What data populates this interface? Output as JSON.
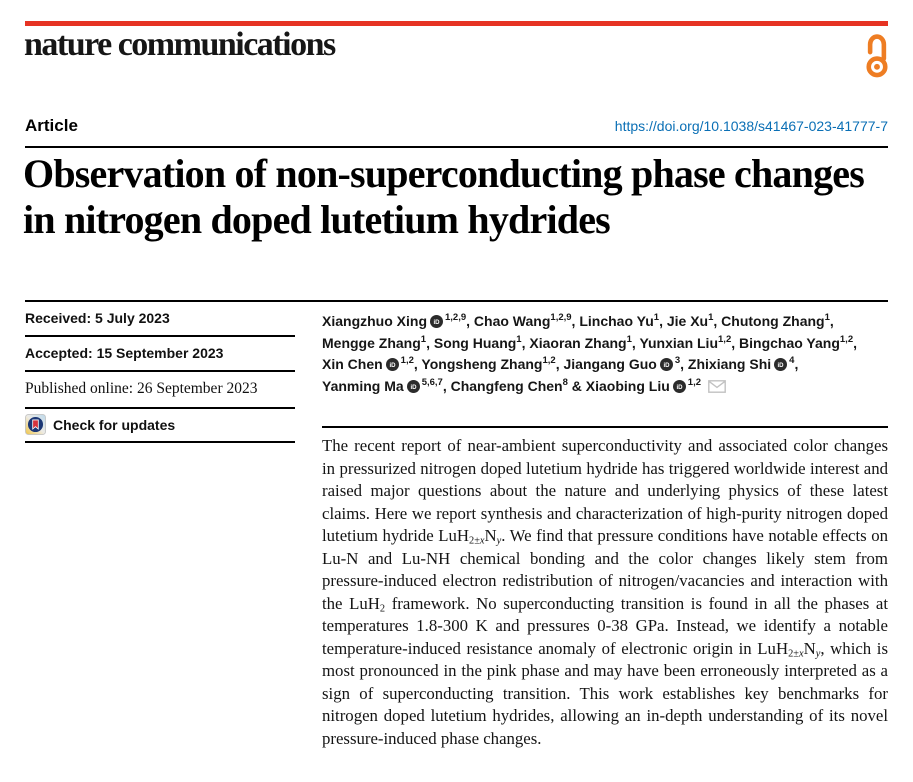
{
  "masthead": {
    "wordmark": "nature communications",
    "rule_color": "#e63323",
    "open_access_icon": "open-lock-icon",
    "open_access_color": "#ee7d23"
  },
  "article_bar": {
    "kicker": "Article",
    "doi": "https://doi.org/10.1038/s41467-023-41777-7",
    "doi_color": "#0a6fb5"
  },
  "title": "Observation of non-superconducting phase changes in nitrogen doped lutetium hydrides",
  "info_panel": {
    "items": [
      {
        "text": "Received: 5 July 2023"
      },
      {
        "text": "Accepted: 15 September 2023"
      },
      {
        "text": "Published online: 26 September 2023"
      }
    ],
    "check_updates_label": "Check for updates",
    "crossmark_icon": "crossmark-bookmark-icon",
    "crossmark_colors": {
      "navy": "#1c3775",
      "red": "#d6323d"
    }
  },
  "authors": {
    "orcid_icon": "orcid-id-icon",
    "email_icon": "envelope-icon",
    "list": [
      {
        "name": "Xiangzhuo Xing",
        "orcid": true,
        "sup": "1,2,9",
        "sep": ", "
      },
      {
        "name": "Chao Wang",
        "orcid": false,
        "sup": "1,2,9",
        "sep": ", "
      },
      {
        "name": "Linchao Yu",
        "orcid": false,
        "sup": "1",
        "sep": ", "
      },
      {
        "name": "Jie Xu",
        "orcid": false,
        "sup": "1",
        "sep": ", "
      },
      {
        "name": "Chutong Zhang",
        "orcid": false,
        "sup": "1",
        "sep": ",",
        "br": true
      },
      {
        "name": "Mengge Zhang",
        "orcid": false,
        "sup": "1",
        "sep": ", "
      },
      {
        "name": "Song Huang",
        "orcid": false,
        "sup": "1",
        "sep": ", "
      },
      {
        "name": "Xiaoran Zhang",
        "orcid": false,
        "sup": "1",
        "sep": ", "
      },
      {
        "name": "Yunxian Liu",
        "orcid": false,
        "sup": "1,2",
        "sep": ", "
      },
      {
        "name": "Bingchao Yang",
        "orcid": false,
        "sup": "1,2",
        "sep": ",",
        "br": true
      },
      {
        "name": "Xin Chen",
        "orcid": true,
        "sup": "1,2",
        "sep": ", "
      },
      {
        "name": "Yongsheng Zhang",
        "orcid": false,
        "sup": "1,2",
        "sep": ", "
      },
      {
        "name": "Jiangang Guo",
        "orcid": true,
        "sup": "3",
        "sep": ", "
      },
      {
        "name": "Zhixiang Shi",
        "orcid": true,
        "sup": "4",
        "sep": ",",
        "br": true
      },
      {
        "name": "Yanming Ma",
        "orcid": true,
        "sup": "5,6,7",
        "sep": ", "
      },
      {
        "name": "Changfeng Chen",
        "orcid": false,
        "sup": "8",
        "sep": " & "
      },
      {
        "name": "Xiaobing Liu",
        "orcid": true,
        "sup": "1,2",
        "sep": "",
        "email": true
      }
    ]
  },
  "abstract": {
    "segments": [
      {
        "t": "The recent report of near-ambient superconductivity and associated color changes in pressurized nitrogen doped lutetium hydride has triggered worldwide interest and raised major questions about the nature and underlying physics of these latest claims. Here we report synthesis and characterization of high-purity nitrogen doped lutetium hydride LuH"
      },
      {
        "sub": "2±"
      },
      {
        "subi": "x"
      },
      {
        "t": "N"
      },
      {
        "subi": "y"
      },
      {
        "t": ". We find that pressure conditions have notable effects on Lu-N and Lu-NH chemical bonding and the color changes likely stem from pressure-induced electron redistribution of nitrogen/vacancies and interaction with the LuH"
      },
      {
        "sub": "2"
      },
      {
        "t": " framework. No superconducting transition is found in all the phases at temperatures 1.8-300 K and pressures 0-38 GPa. Instead, we identify a notable temperature-induced resistance anomaly of electronic origin in LuH"
      },
      {
        "sub": "2±"
      },
      {
        "subi": "x"
      },
      {
        "t": "N"
      },
      {
        "subi": "y"
      },
      {
        "t": ", which is most pronounced in the pink phase and may have been erroneously interpreted as a sign of superconducting transition. This work establishes key benchmarks for nitrogen doped lutetium hydrides, allowing an in-depth understanding of its novel pressure-induced phase changes."
      }
    ]
  }
}
